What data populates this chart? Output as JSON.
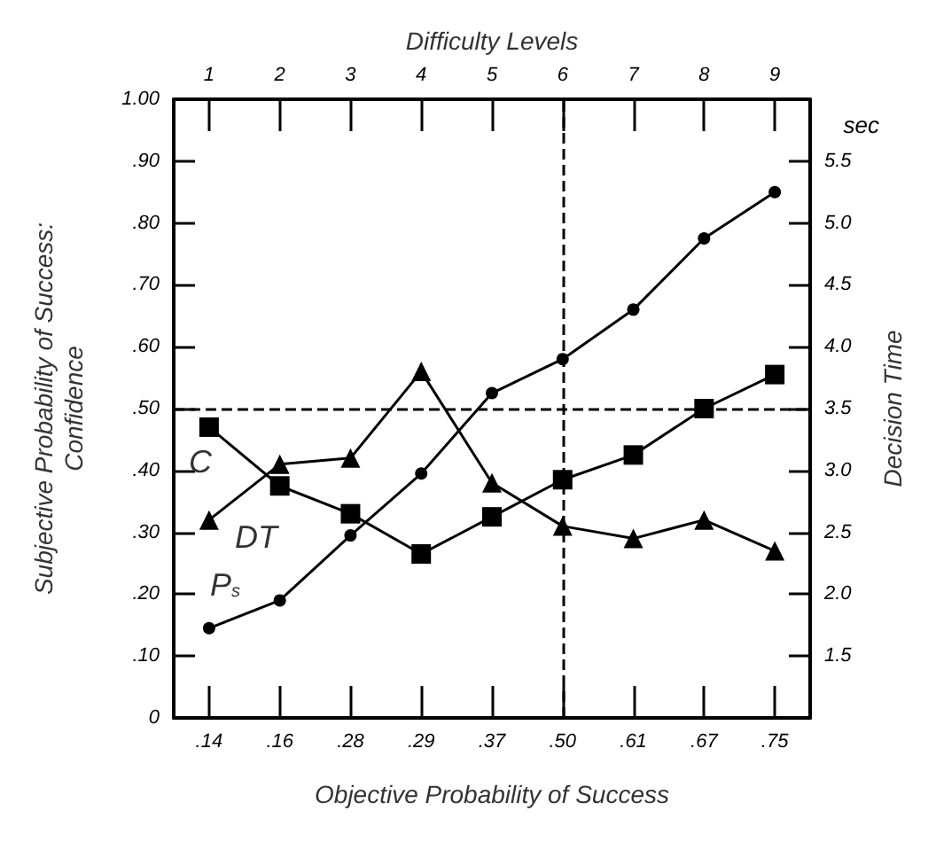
{
  "chart_data": {
    "type": "line",
    "xlabel": "Objective Probability of Success",
    "ylabel": "Subjective Probability of Success:\nConfidence",
    "y2label": "Decision Time",
    "x2label": "Difficulty Levels",
    "categories": [
      ".14",
      ".16",
      ".28",
      ".29",
      ".37",
      ".50",
      ".61",
      ".67",
      ".75"
    ],
    "x2lim": [
      0.5,
      9.5
    ],
    "x2ticks": [
      1,
      2,
      3,
      4,
      5,
      6,
      7,
      8,
      9
    ],
    "ylim": [
      0,
      1
    ],
    "yticks": [
      0,
      {
        "value": 0.1,
        "label": ".10"
      },
      {
        "value": 0.2,
        "label": ".20"
      },
      {
        "value": 0.3,
        "label": ".30"
      },
      {
        "value": 0.4,
        "label": ".40"
      },
      {
        "value": 0.5,
        "label": ".50"
      },
      {
        "value": 0.6,
        "label": ".60"
      },
      {
        "value": 0.7,
        "label": ".70"
      },
      {
        "value": 0.8,
        "label": ".80"
      },
      {
        "value": 0.9,
        "label": ".90"
      },
      {
        "value": 1,
        "label": "1.00"
      }
    ],
    "y2lim": [
      1,
      6
    ],
    "y2ticks": [
      1.5,
      {
        "value": 2,
        "label": "2.0"
      },
      2.5,
      {
        "value": 3,
        "label": "3.0"
      },
      3.5,
      {
        "value": 4,
        "label": "4.0"
      },
      4.5,
      {
        "value": 5,
        "label": "5.0"
      },
      5.5
    ],
    "series": [
      {
        "name": "C",
        "color": "#000000",
        "marker": "square",
        "values": [
          0.47,
          0.375,
          0.33,
          0.265,
          0.325,
          0.385,
          0.425,
          0.5,
          0.555
        ]
      },
      {
        "name": "DT",
        "color": "#000000",
        "marker": "triangle",
        "axis": "y2",
        "values": [
          2.6,
          3.05,
          3.1,
          3.8,
          2.9,
          2.55,
          2.45,
          2.6,
          2.35
        ]
      },
      {
        "name": "P$_{s}$",
        "color": "#000000",
        "marker": "circle",
        "values": [
          0.145,
          0.19,
          0.295,
          0.395,
          0.525,
          0.58,
          0.66,
          0.775,
          0.85
        ]
      }
    ],
    "ref_lines": [
      {
        "axis": "y",
        "value": 0.5,
        "line_style": "dashed"
      },
      {
        "axis": "x",
        "value": ".50",
        "line_style": "dashed"
      }
    ],
    "annotations": [
      "sec"
    ],
    "line_style": "solid",
    "grid": false,
    "legend": false
  }
}
